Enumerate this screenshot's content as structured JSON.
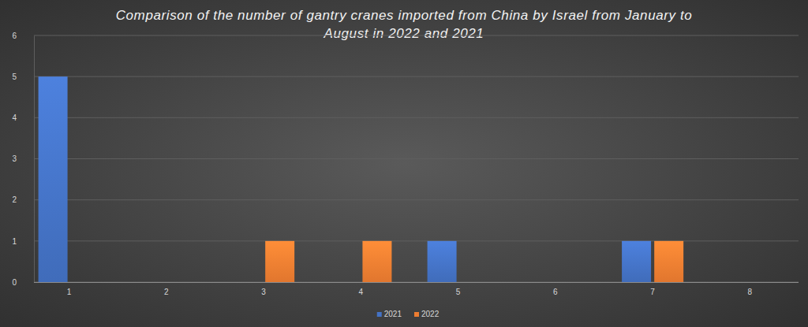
{
  "chart_data": {
    "type": "bar",
    "title": "Comparison of the number of gantry cranes imported from China by Israel from January to August in 2022 and 2021",
    "categories": [
      "1",
      "2",
      "3",
      "4",
      "5",
      "6",
      "7",
      "8"
    ],
    "series": [
      {
        "name": "2021",
        "color": "#4472c4",
        "values": [
          5,
          0,
          0,
          0,
          1,
          0,
          1,
          0
        ]
      },
      {
        "name": "2022",
        "color": "#ed7d31",
        "values": [
          0,
          0,
          1,
          1,
          0,
          0,
          1,
          0
        ]
      }
    ],
    "ylim": [
      0,
      6
    ],
    "yticks": [
      0,
      1,
      2,
      3,
      4,
      5,
      6
    ],
    "grid": true,
    "legend": "bottom"
  }
}
